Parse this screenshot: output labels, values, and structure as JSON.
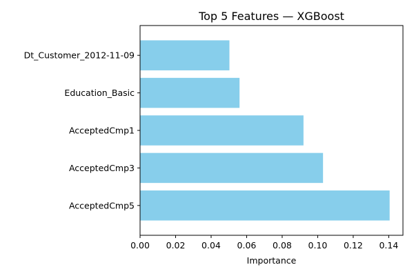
{
  "chart_data": {
    "type": "bar",
    "orientation": "horizontal",
    "title": "Top 5 Features — XGBoost",
    "xlabel": "Importance",
    "ylabel": "",
    "categories": [
      "AcceptedCmp5",
      "AcceptedCmp3",
      "AcceptedCmp1",
      "Education_Basic",
      "Dt_Customer_2012-11-09"
    ],
    "values": [
      0.1405,
      0.103,
      0.092,
      0.056,
      0.0503
    ],
    "xlim": [
      0.0,
      0.148
    ],
    "xticks": [
      0.0,
      0.02,
      0.04,
      0.06,
      0.08,
      0.1,
      0.12,
      0.14
    ],
    "xtick_labels": [
      "0.00",
      "0.02",
      "0.04",
      "0.06",
      "0.08",
      "0.10",
      "0.12",
      "0.14"
    ],
    "bar_color": "#87ceeb",
    "grid": false
  }
}
